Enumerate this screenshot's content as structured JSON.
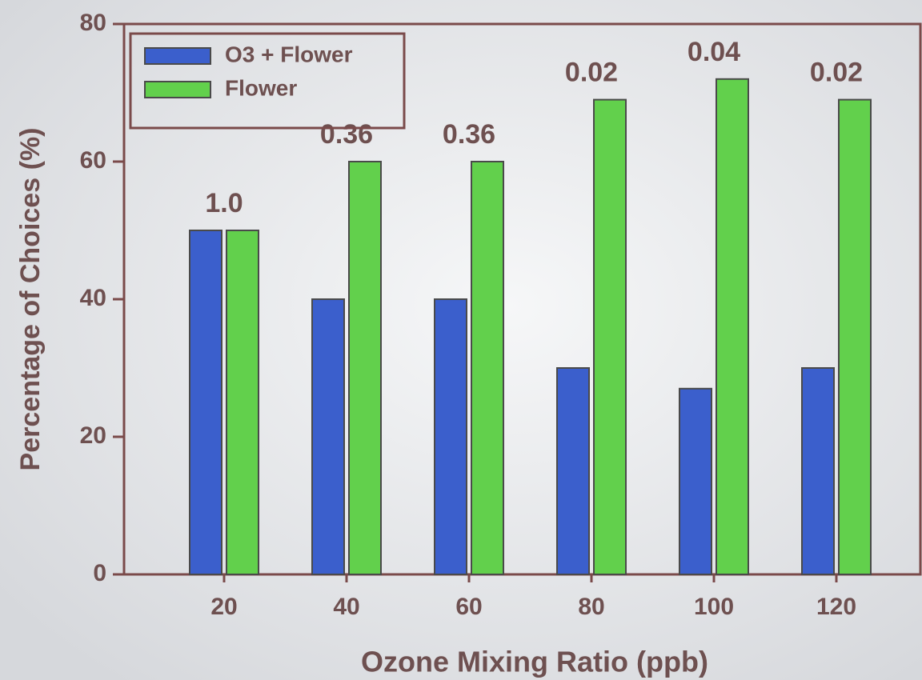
{
  "chart_data": {
    "type": "bar",
    "x_label": "Ozone Mixing Ratio (ppb)",
    "y_label": "Percentage of Choices (%)",
    "categories": [
      "20",
      "40",
      "60",
      "80",
      "100",
      "120"
    ],
    "series": [
      {
        "name": "O3 + Flower",
        "color": "#3b5fcc",
        "values": [
          50,
          40,
          40,
          30,
          27,
          30
        ]
      },
      {
        "name": "Flower",
        "color": "#62d04c",
        "values": [
          50,
          60,
          60,
          69,
          72,
          69
        ]
      }
    ],
    "annotations": [
      "1.0",
      "0.36",
      "0.36",
      "0.02",
      "0.04",
      "0.02"
    ],
    "ylim": [
      0,
      80
    ],
    "yticks": [
      0,
      20,
      40,
      60,
      80
    ],
    "legend": "upper-left"
  }
}
